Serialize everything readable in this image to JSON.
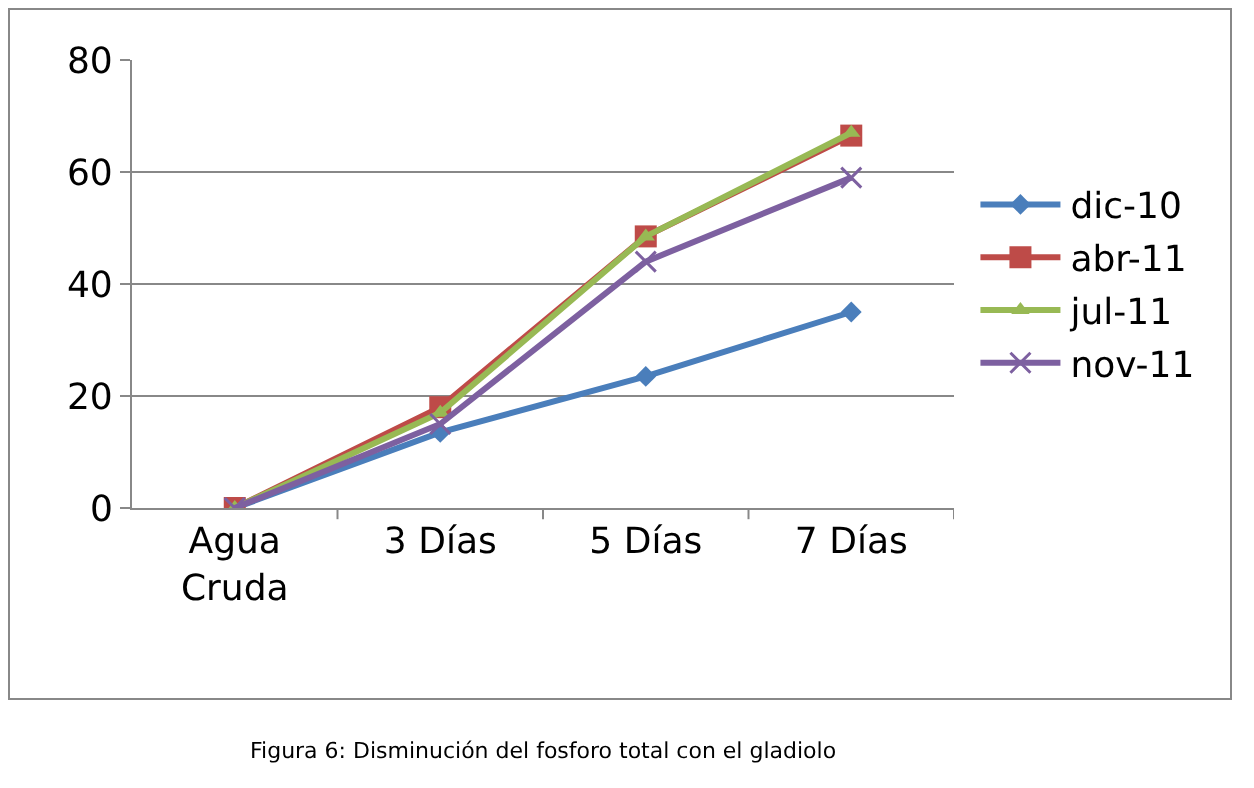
{
  "chart_data": {
    "type": "line",
    "categories": [
      "Agua\nCruda",
      "3 Días",
      "5 Días",
      "7 Días"
    ],
    "series": [
      {
        "name": "dic-10",
        "color": "#4a7ebb",
        "marker": "diamond",
        "values": [
          0,
          13.5,
          23.5,
          35
        ]
      },
      {
        "name": "abr-11",
        "color": "#be4b48",
        "marker": "square",
        "values": [
          0,
          18,
          48.5,
          66.5
        ]
      },
      {
        "name": "jul-11",
        "color": "#98b954",
        "marker": "triangle",
        "values": [
          0,
          17,
          48.5,
          67
        ]
      },
      {
        "name": "nov-11",
        "color": "#7d60a0",
        "marker": "cross",
        "values": [
          0,
          15,
          44,
          59
        ]
      }
    ],
    "ylim": [
      0,
      80
    ],
    "yticks": [
      0,
      20,
      40,
      60,
      80
    ],
    "grid": "y",
    "legend": "right",
    "annotations": [
      "Figura 6: Disminución del fosforo total con el gladiolo"
    ]
  }
}
